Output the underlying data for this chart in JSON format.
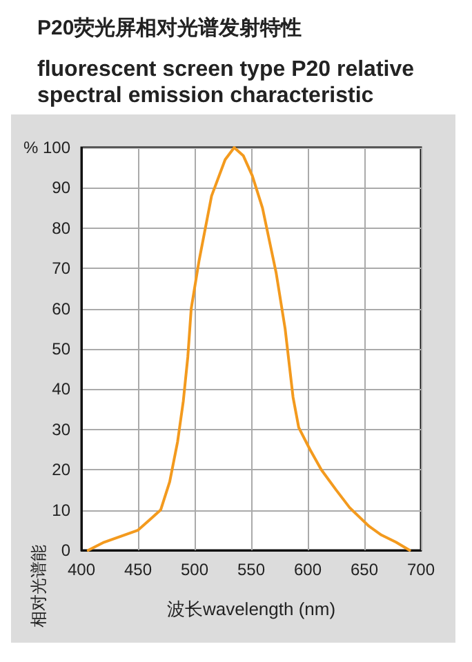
{
  "chart_data": {
    "type": "line",
    "title": "P20荧光屏相对光谱发射特性",
    "subtitle": "fluorescent screen type P20 relative\nspectral emission characteristic",
    "xlabel": "波长wavelength (nm)",
    "ylabel": "相对光谱能",
    "x": [
      406,
      420,
      435,
      450,
      460,
      470,
      478,
      485,
      490,
      494,
      497,
      504,
      515,
      527,
      535,
      543,
      551,
      560,
      572,
      580,
      587,
      592,
      602,
      612,
      625,
      637,
      654,
      665,
      678,
      690
    ],
    "series": [
      {
        "color": "#f39a1e",
        "values": [
          0,
          2,
          3.5,
          5,
          7.5,
          10,
          17,
          27,
          37,
          48,
          60,
          72,
          88,
          97,
          100,
          98,
          93,
          85,
          69,
          55,
          38,
          30.5,
          25,
          20,
          15,
          10.6,
          6,
          3.8,
          2,
          0
        ]
      }
    ],
    "xlim": [
      400,
      700
    ],
    "xticks": [
      400,
      450,
      500,
      550,
      600,
      650,
      700
    ],
    "ylim": [
      0,
      100
    ],
    "yticks": [
      0,
      10,
      20,
      30,
      40,
      50,
      60,
      70,
      80,
      90,
      {
        "value": 100,
        "label": "% 100"
      }
    ],
    "grid": true,
    "marker": "none",
    "line_style": "solid"
  }
}
